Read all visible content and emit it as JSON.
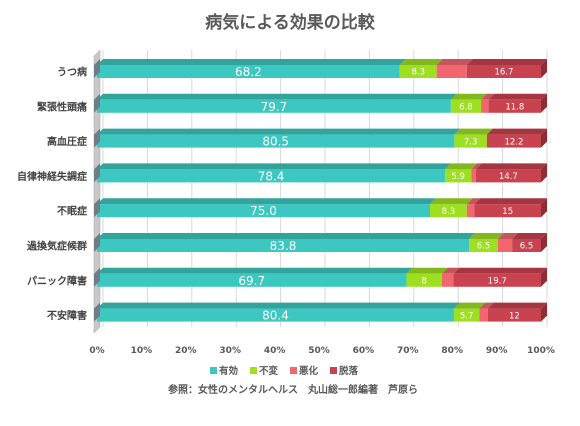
{
  "chart_data": {
    "type": "bar",
    "orientation": "horizontal",
    "stacking": "percent",
    "title": "病気による効果の比較",
    "source_note": "参照：女性のメンタルヘルス　丸山総一郎編著　芦原ら",
    "categories": [
      "うつ病",
      "緊張性頭痛",
      "高血圧症",
      "自律神経失調症",
      "不眠症",
      "過換気症候群",
      "パニック障害",
      "不安障害"
    ],
    "series": [
      {
        "name": "有効",
        "color": "#3cc8c1",
        "values": [
          68.2,
          79.7,
          80.5,
          78.4,
          75.0,
          83.8,
          69.7,
          80.4
        ],
        "labels": [
          "68.2",
          "79.7",
          "80.5",
          "78.4",
          "75.0",
          "83.8",
          "69.7",
          "80.4"
        ]
      },
      {
        "name": "不変",
        "color": "#9ee021",
        "values": [
          8.3,
          6.8,
          7.3,
          5.9,
          8.3,
          6.5,
          8.0,
          5.7
        ],
        "labels": [
          "8.3",
          "6.8",
          "7.3",
          "5.9",
          "8.3",
          "6.5",
          "8",
          "5.7"
        ]
      },
      {
        "name": "悪化",
        "color": "#f26670",
        "values": [
          6.8,
          1.7,
          0.0,
          1.0,
          1.7,
          3.2,
          2.6,
          1.9
        ],
        "labels": [
          "",
          "",
          "",
          "",
          "",
          "",
          "",
          ""
        ]
      },
      {
        "name": "脱落",
        "color": "#c9424f",
        "values": [
          16.7,
          11.8,
          12.2,
          14.7,
          15.0,
          6.5,
          19.7,
          12.0
        ],
        "labels": [
          "16.7",
          "11.8",
          "12.2",
          "14.7",
          "15",
          "6.5",
          "19.7",
          "12"
        ]
      }
    ],
    "x_ticks": [
      "0%",
      "10%",
      "20%",
      "30%",
      "40%",
      "50%",
      "60%",
      "70%",
      "80%",
      "90%",
      "100%"
    ],
    "xlim": [
      0,
      100
    ],
    "grid": true,
    "legend_position": "bottom"
  }
}
